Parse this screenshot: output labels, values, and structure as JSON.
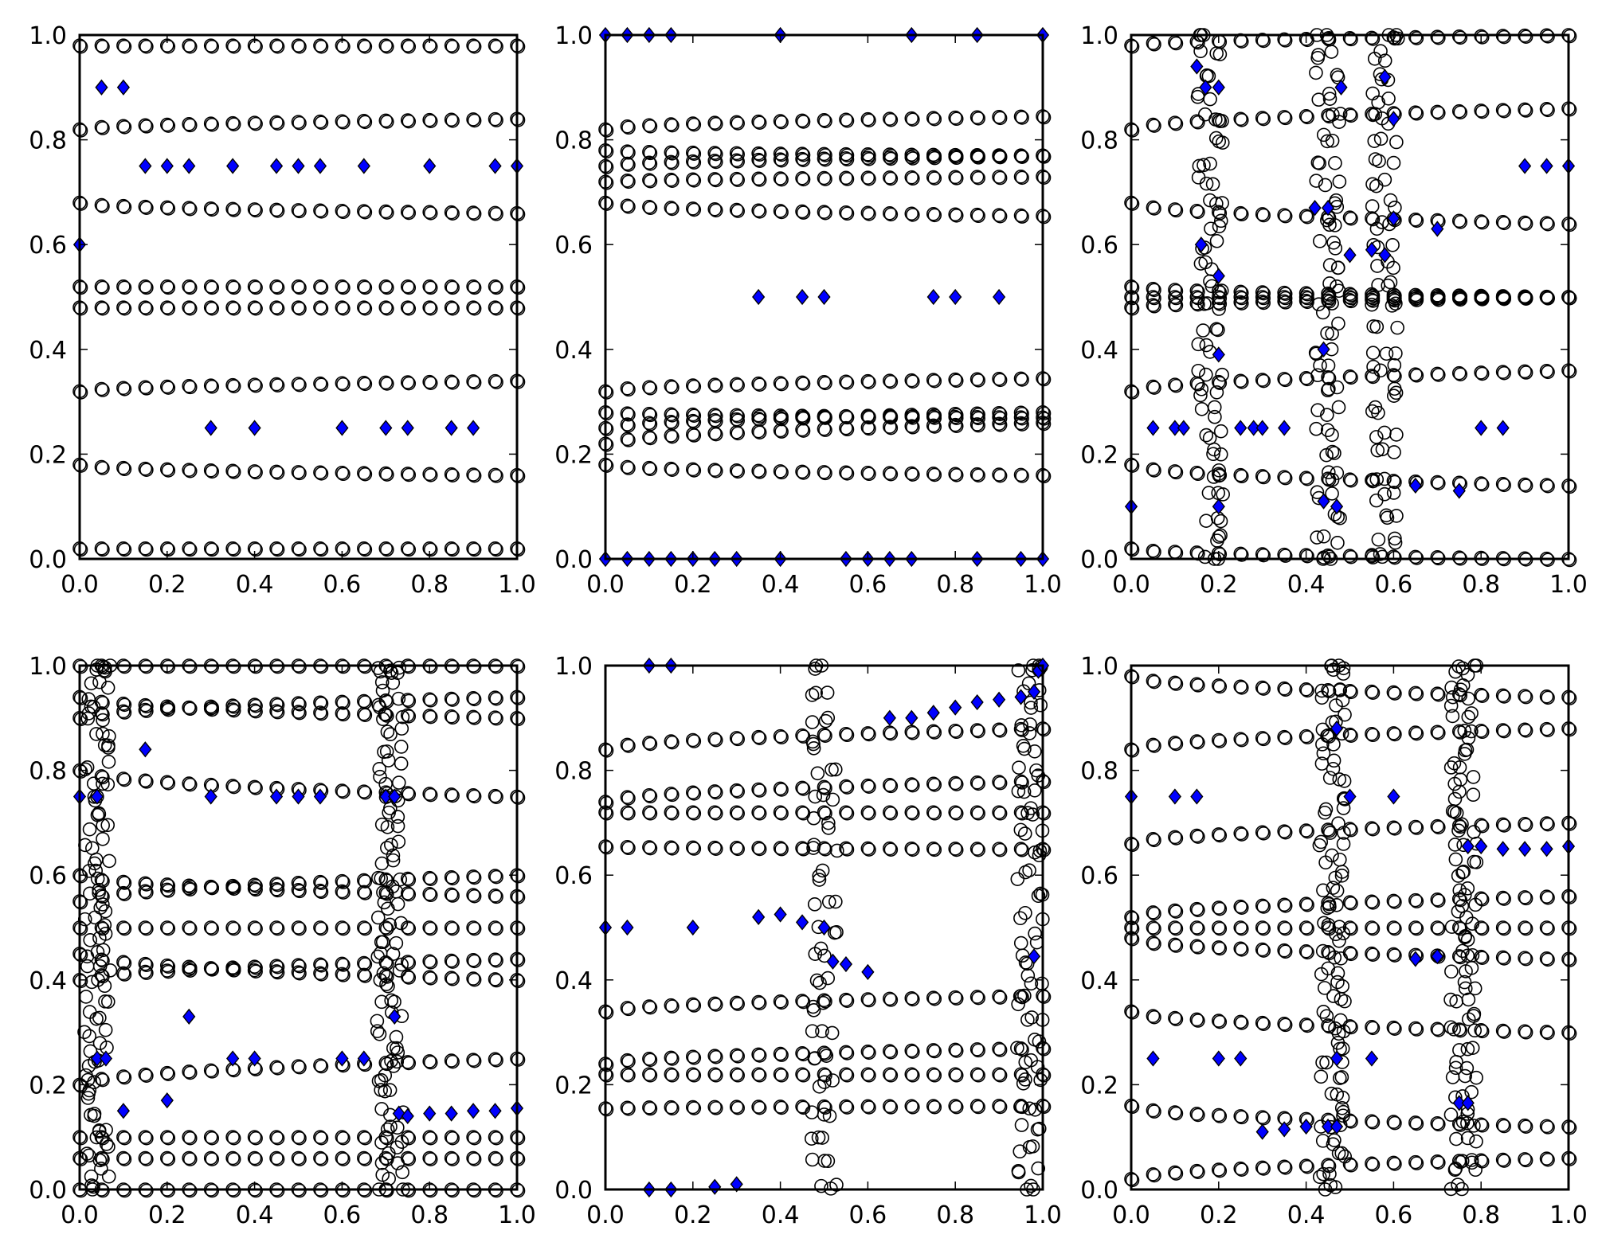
{
  "colors": {
    "circle_edge": "#000000",
    "circle_face": "none",
    "diamond_face": "#0000ff",
    "diamond_edge": "#000000",
    "axes": "#000000",
    "background": "#ffffff"
  },
  "chart_data": [
    {
      "type": "scatter",
      "panel": "top-left",
      "xlim": [
        0,
        1
      ],
      "ylim": [
        0,
        1
      ],
      "x_ticks": [
        "0.0",
        "0.2",
        "0.4",
        "0.6",
        "0.8",
        "1.0"
      ],
      "y_ticks": [
        "0.0",
        "0.2",
        "0.4",
        "0.6",
        "0.8",
        "1.0"
      ],
      "circle_rows": [
        {
          "x_step": 0.05,
          "y": [
            0.02,
            0.02
          ]
        },
        {
          "x_step": 0.05,
          "y": [
            0.18,
            0.16
          ]
        },
        {
          "x_step": 0.05,
          "y": [
            0.32,
            0.34
          ]
        },
        {
          "x_step": 0.05,
          "y": [
            0.48,
            0.48
          ]
        },
        {
          "x_step": 0.05,
          "y": [
            0.52,
            0.52
          ]
        },
        {
          "x_step": 0.05,
          "y": [
            0.68,
            0.66
          ]
        },
        {
          "x_step": 0.05,
          "y": [
            0.82,
            0.84
          ]
        },
        {
          "x_step": 0.05,
          "y": [
            0.98,
            0.98
          ]
        }
      ],
      "diamonds": [
        [
          0.0,
          0.6
        ],
        [
          0.05,
          0.9
        ],
        [
          0.1,
          0.9
        ],
        [
          0.15,
          0.75
        ],
        [
          0.2,
          0.75
        ],
        [
          0.25,
          0.75
        ],
        [
          0.35,
          0.75
        ],
        [
          0.45,
          0.75
        ],
        [
          0.5,
          0.75
        ],
        [
          0.55,
          0.75
        ],
        [
          0.65,
          0.75
        ],
        [
          0.8,
          0.75
        ],
        [
          0.95,
          0.75
        ],
        [
          1.0,
          0.75
        ],
        [
          0.3,
          0.25
        ],
        [
          0.4,
          0.25
        ],
        [
          0.6,
          0.25
        ],
        [
          0.7,
          0.25
        ],
        [
          0.75,
          0.25
        ],
        [
          0.85,
          0.25
        ],
        [
          0.9,
          0.25
        ]
      ]
    },
    {
      "type": "scatter",
      "panel": "top-center",
      "xlim": [
        0,
        1
      ],
      "ylim": [
        0,
        1
      ],
      "x_ticks": [
        "0.0",
        "0.2",
        "0.4",
        "0.6",
        "0.8",
        "1.0"
      ],
      "y_ticks": [
        "0.0",
        "0.2",
        "0.4",
        "0.6",
        "0.8",
        "1.0"
      ],
      "circle_rows": [
        {
          "x_step": 0.05,
          "y": [
            0.18,
            0.16
          ]
        },
        {
          "x_step": 0.05,
          "y": [
            0.22,
            0.26
          ]
        },
        {
          "x_step": 0.05,
          "y": [
            0.25,
            0.28
          ]
        },
        {
          "x_step": 0.05,
          "y": [
            0.28,
            0.27
          ]
        },
        {
          "x_step": 0.05,
          "y": [
            0.32,
            0.345
          ]
        },
        {
          "x_step": 0.05,
          "y": [
            0.68,
            0.655
          ]
        },
        {
          "x_step": 0.05,
          "y": [
            0.72,
            0.73
          ]
        },
        {
          "x_step": 0.05,
          "y": [
            0.75,
            0.77
          ]
        },
        {
          "x_step": 0.05,
          "y": [
            0.78,
            0.77
          ]
        },
        {
          "x_step": 0.05,
          "y": [
            0.82,
            0.845
          ]
        }
      ],
      "diamonds": [
        [
          0.0,
          0.0
        ],
        [
          0.05,
          0.0
        ],
        [
          0.1,
          0.0
        ],
        [
          0.15,
          0.0
        ],
        [
          0.2,
          0.0
        ],
        [
          0.25,
          0.0
        ],
        [
          0.3,
          0.0
        ],
        [
          0.4,
          0.0
        ],
        [
          0.55,
          0.0
        ],
        [
          0.6,
          0.0
        ],
        [
          0.65,
          0.0
        ],
        [
          0.7,
          0.0
        ],
        [
          0.85,
          0.0
        ],
        [
          0.95,
          0.0
        ],
        [
          1.0,
          0.0
        ],
        [
          0.0,
          1.0
        ],
        [
          0.05,
          1.0
        ],
        [
          0.1,
          1.0
        ],
        [
          0.15,
          1.0
        ],
        [
          0.4,
          1.0
        ],
        [
          0.7,
          1.0
        ],
        [
          0.85,
          1.0
        ],
        [
          1.0,
          1.0
        ],
        [
          0.35,
          0.5
        ],
        [
          0.45,
          0.5
        ],
        [
          0.5,
          0.5
        ],
        [
          0.75,
          0.5
        ],
        [
          0.8,
          0.5
        ],
        [
          0.9,
          0.5
        ]
      ]
    },
    {
      "type": "scatter",
      "panel": "top-right",
      "xlim": [
        0,
        1
      ],
      "ylim": [
        0,
        1
      ],
      "x_ticks": [
        "0.0",
        "0.2",
        "0.4",
        "0.6",
        "0.8",
        "1.0"
      ],
      "y_ticks": [
        "0.0",
        "0.2",
        "0.4",
        "0.6",
        "0.8",
        "1.0"
      ],
      "circle_rows": [
        {
          "x_step": 0.05,
          "y": [
            0.02,
            0.0
          ]
        },
        {
          "x_step": 0.05,
          "y": [
            0.18,
            0.14
          ]
        },
        {
          "x_step": 0.05,
          "y": [
            0.32,
            0.36
          ]
        },
        {
          "x_step": 0.05,
          "y": [
            0.48,
            0.5
          ]
        },
        {
          "x_step": 0.05,
          "y": [
            0.5,
            0.5
          ]
        },
        {
          "x_step": 0.05,
          "y": [
            0.52,
            0.5
          ]
        },
        {
          "x_step": 0.05,
          "y": [
            0.68,
            0.64
          ]
        },
        {
          "x_step": 0.05,
          "y": [
            0.82,
            0.86
          ]
        },
        {
          "x_step": 0.05,
          "y": [
            0.98,
            1.0
          ]
        }
      ],
      "scatter_clusters": [
        {
          "x": 0.18,
          "y_step": 0.04,
          "count": 25
        },
        {
          "x": 0.45,
          "y_step": 0.04,
          "count": 25
        },
        {
          "x": 0.58,
          "y_step": 0.04,
          "count": 25
        }
      ],
      "diamonds": [
        [
          0.0,
          0.1
        ],
        [
          0.05,
          0.25
        ],
        [
          0.1,
          0.25
        ],
        [
          0.12,
          0.25
        ],
        [
          0.25,
          0.25
        ],
        [
          0.28,
          0.25
        ],
        [
          0.3,
          0.25
        ],
        [
          0.35,
          0.25
        ],
        [
          0.8,
          0.25
        ],
        [
          0.85,
          0.25
        ],
        [
          0.15,
          0.94
        ],
        [
          0.17,
          0.9
        ],
        [
          0.2,
          0.9
        ],
        [
          0.16,
          0.6
        ],
        [
          0.2,
          0.54
        ],
        [
          0.2,
          0.39
        ],
        [
          0.2,
          0.1
        ],
        [
          0.42,
          0.67
        ],
        [
          0.45,
          0.67
        ],
        [
          0.44,
          0.4
        ],
        [
          0.44,
          0.11
        ],
        [
          0.47,
          0.1
        ],
        [
          0.48,
          0.9
        ],
        [
          0.5,
          0.58
        ],
        [
          0.55,
          0.59
        ],
        [
          0.58,
          0.92
        ],
        [
          0.6,
          0.84
        ],
        [
          0.6,
          0.65
        ],
        [
          0.58,
          0.58
        ],
        [
          0.65,
          0.14
        ],
        [
          0.7,
          0.63
        ],
        [
          0.75,
          0.13
        ],
        [
          0.9,
          0.75
        ],
        [
          0.95,
          0.75
        ],
        [
          1.0,
          0.75
        ]
      ]
    },
    {
      "type": "scatter",
      "panel": "bottom-left",
      "xlim": [
        0,
        1
      ],
      "ylim": [
        0,
        1
      ],
      "x_ticks": [
        "0.0",
        "0.2",
        "0.4",
        "0.6",
        "0.8",
        "1.0"
      ],
      "y_ticks": [
        "0.0",
        "0.2",
        "0.4",
        "0.6",
        "0.8",
        "1.0"
      ],
      "circle_rows": [
        {
          "x_step": 0.05,
          "y": [
            0.0,
            0.0
          ]
        },
        {
          "x_step": 0.05,
          "y": [
            0.06,
            0.06
          ]
        },
        {
          "x_step": 0.05,
          "y": [
            0.1,
            0.1
          ]
        },
        {
          "x_step": 0.05,
          "y": [
            0.2,
            0.25
          ]
        },
        {
          "x_step": 0.05,
          "y": [
            0.4,
            0.44
          ]
        },
        {
          "x_step": 0.05,
          "y": [
            0.45,
            0.4
          ]
        },
        {
          "x_step": 0.05,
          "y": [
            0.5,
            0.5
          ]
        },
        {
          "x_step": 0.05,
          "y": [
            0.55,
            0.6
          ]
        },
        {
          "x_step": 0.05,
          "y": [
            0.6,
            0.56
          ]
        },
        {
          "x_step": 0.05,
          "y": [
            0.8,
            0.75
          ]
        },
        {
          "x_step": 0.05,
          "y": [
            0.9,
            0.94
          ]
        },
        {
          "x_step": 0.05,
          "y": [
            0.94,
            0.9
          ]
        },
        {
          "x_step": 0.05,
          "y": [
            1.0,
            1.0
          ]
        }
      ],
      "scatter_clusters": [
        {
          "x": 0.04,
          "y_step": 0.03,
          "count": 34
        },
        {
          "x": 0.71,
          "y_step": 0.03,
          "count": 34
        }
      ],
      "diamonds": [
        [
          0.0,
          0.75
        ],
        [
          0.04,
          0.75
        ],
        [
          0.15,
          0.84
        ],
        [
          0.3,
          0.75
        ],
        [
          0.45,
          0.75
        ],
        [
          0.5,
          0.75
        ],
        [
          0.55,
          0.75
        ],
        [
          0.7,
          0.75
        ],
        [
          0.72,
          0.75
        ],
        [
          0.04,
          0.25
        ],
        [
          0.06,
          0.25
        ],
        [
          0.1,
          0.15
        ],
        [
          0.2,
          0.17
        ],
        [
          0.25,
          0.33
        ],
        [
          0.35,
          0.25
        ],
        [
          0.4,
          0.25
        ],
        [
          0.6,
          0.25
        ],
        [
          0.65,
          0.25
        ],
        [
          0.72,
          0.33
        ],
        [
          0.73,
          0.145
        ],
        [
          0.75,
          0.14
        ],
        [
          0.8,
          0.145
        ],
        [
          0.85,
          0.145
        ],
        [
          0.9,
          0.15
        ],
        [
          0.95,
          0.15
        ],
        [
          1.0,
          0.155
        ]
      ]
    },
    {
      "type": "scatter",
      "panel": "bottom-center",
      "xlim": [
        0,
        1
      ],
      "ylim": [
        0,
        1
      ],
      "x_ticks": [
        "0.0",
        "0.2",
        "0.4",
        "0.6",
        "0.8",
        "1.0"
      ],
      "y_ticks": [
        "0.0",
        "0.2",
        "0.4",
        "0.6",
        "0.8",
        "1.0"
      ],
      "circle_rows": [
        {
          "x_step": 0.05,
          "y": [
            0.155,
            0.16
          ]
        },
        {
          "x_step": 0.05,
          "y": [
            0.22,
            0.22
          ]
        },
        {
          "x_step": 0.05,
          "y": [
            0.24,
            0.27
          ]
        },
        {
          "x_step": 0.05,
          "y": [
            0.34,
            0.37
          ]
        },
        {
          "x_step": 0.05,
          "y": [
            0.655,
            0.65
          ]
        },
        {
          "x_step": 0.05,
          "y": [
            0.72,
            0.72
          ]
        },
        {
          "x_step": 0.05,
          "y": [
            0.74,
            0.78
          ]
        },
        {
          "x_step": 0.05,
          "y": [
            0.84,
            0.88
          ]
        }
      ],
      "scatter_clusters": [
        {
          "x": 0.5,
          "y_step": 0.05,
          "count": 20
        },
        {
          "x": 0.97,
          "y_step": 0.04,
          "count": 26
        }
      ],
      "diamonds": [
        [
          0.1,
          0.0
        ],
        [
          0.15,
          0.0
        ],
        [
          0.25,
          0.005
        ],
        [
          0.3,
          0.01
        ],
        [
          0.1,
          1.0
        ],
        [
          0.15,
          1.0
        ],
        [
          0.0,
          0.5
        ],
        [
          0.05,
          0.5
        ],
        [
          0.2,
          0.5
        ],
        [
          0.35,
          0.52
        ],
        [
          0.4,
          0.525
        ],
        [
          0.45,
          0.51
        ],
        [
          0.5,
          0.5
        ],
        [
          0.52,
          0.435
        ],
        [
          0.55,
          0.43
        ],
        [
          0.6,
          0.415
        ],
        [
          0.98,
          0.445
        ],
        [
          0.65,
          0.9
        ],
        [
          0.7,
          0.9
        ],
        [
          0.75,
          0.91
        ],
        [
          0.8,
          0.92
        ],
        [
          0.85,
          0.93
        ],
        [
          0.9,
          0.935
        ],
        [
          0.95,
          0.94
        ],
        [
          0.98,
          0.95
        ],
        [
          0.99,
          0.99
        ],
        [
          1.0,
          1.0
        ]
      ]
    },
    {
      "type": "scatter",
      "panel": "bottom-right",
      "xlim": [
        0,
        1
      ],
      "ylim": [
        0,
        1
      ],
      "x_ticks": [
        "0.0",
        "0.2",
        "0.4",
        "0.6",
        "0.8",
        "1.0"
      ],
      "y_ticks": [
        "0.0",
        "0.2",
        "0.4",
        "0.6",
        "0.8",
        "1.0"
      ],
      "circle_rows": [
        {
          "x_step": 0.05,
          "y": [
            0.02,
            0.06
          ]
        },
        {
          "x_step": 0.05,
          "y": [
            0.16,
            0.12
          ]
        },
        {
          "x_step": 0.05,
          "y": [
            0.34,
            0.3
          ]
        },
        {
          "x_step": 0.05,
          "y": [
            0.48,
            0.44
          ]
        },
        {
          "x_step": 0.05,
          "y": [
            0.5,
            0.5
          ]
        },
        {
          "x_step": 0.05,
          "y": [
            0.52,
            0.56
          ]
        },
        {
          "x_step": 0.05,
          "y": [
            0.66,
            0.7
          ]
        },
        {
          "x_step": 0.05,
          "y": [
            0.84,
            0.88
          ]
        },
        {
          "x_step": 0.05,
          "y": [
            0.98,
            0.94
          ]
        }
      ],
      "scatter_clusters": [
        {
          "x": 0.46,
          "y_step": 0.03,
          "count": 34
        },
        {
          "x": 0.76,
          "y_step": 0.03,
          "count": 34
        }
      ],
      "diamonds": [
        [
          0.0,
          0.75
        ],
        [
          0.1,
          0.75
        ],
        [
          0.15,
          0.75
        ],
        [
          0.47,
          0.88
        ],
        [
          0.5,
          0.75
        ],
        [
          0.6,
          0.75
        ],
        [
          0.05,
          0.25
        ],
        [
          0.2,
          0.25
        ],
        [
          0.25,
          0.25
        ],
        [
          0.47,
          0.25
        ],
        [
          0.55,
          0.25
        ],
        [
          0.3,
          0.11
        ],
        [
          0.35,
          0.115
        ],
        [
          0.4,
          0.12
        ],
        [
          0.45,
          0.12
        ],
        [
          0.47,
          0.12
        ],
        [
          0.65,
          0.44
        ],
        [
          0.7,
          0.445
        ],
        [
          0.75,
          0.165
        ],
        [
          0.77,
          0.165
        ],
        [
          0.77,
          0.655
        ],
        [
          0.8,
          0.655
        ],
        [
          0.85,
          0.65
        ],
        [
          0.9,
          0.65
        ],
        [
          0.95,
          0.65
        ],
        [
          1.0,
          0.655
        ]
      ]
    }
  ]
}
